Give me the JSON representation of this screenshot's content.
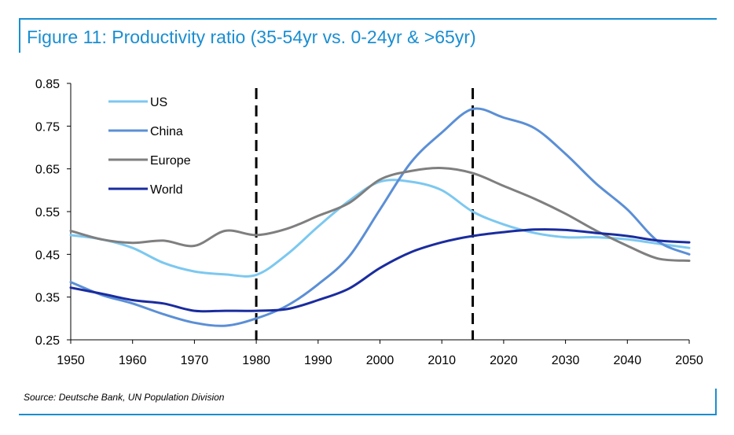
{
  "figure": {
    "title": "Figure 11: Productivity ratio (35-54yr vs. 0-24yr & >65yr)",
    "source": "Source: Deutsche Bank, UN Population Division",
    "accent_color": "#1a8ed1"
  },
  "chart_data": {
    "type": "line",
    "title": "",
    "xlabel": "",
    "ylabel": "",
    "xlim": [
      1950,
      2050
    ],
    "ylim": [
      0.25,
      0.85
    ],
    "x_ticks": [
      1950,
      1960,
      1970,
      1980,
      1990,
      2000,
      2010,
      2020,
      2030,
      2040,
      2050
    ],
    "x_tick_labels": [
      "1950",
      "1960",
      "1970",
      "1980",
      "1990",
      "2000",
      "2010",
      "2020",
      "2030",
      "2040",
      "2050"
    ],
    "y_ticks": [
      0.25,
      0.35,
      0.45,
      0.55,
      0.65,
      0.75,
      0.85
    ],
    "y_tick_labels": [
      "0.25",
      "0.35",
      "0.45",
      "0.55",
      "0.65",
      "0.75",
      "0.85"
    ],
    "grid": false,
    "legend_position": "top-left",
    "reference_lines": [
      1980,
      2015
    ],
    "series": [
      {
        "name": "US",
        "color": "#7cc8f0",
        "x": [
          1950,
          1955,
          1960,
          1965,
          1970,
          1975,
          1980,
          1985,
          1990,
          1995,
          2000,
          2005,
          2010,
          2015,
          2020,
          2025,
          2030,
          2035,
          2040,
          2045,
          2050
        ],
        "y": [
          0.495,
          0.485,
          0.465,
          0.43,
          0.41,
          0.403,
          0.402,
          0.45,
          0.515,
          0.575,
          0.62,
          0.62,
          0.6,
          0.55,
          0.52,
          0.5,
          0.49,
          0.49,
          0.485,
          0.475,
          0.465
        ]
      },
      {
        "name": "China",
        "color": "#5b8fd6",
        "x": [
          1950,
          1955,
          1960,
          1965,
          1970,
          1975,
          1980,
          1985,
          1990,
          1995,
          2000,
          2005,
          2010,
          2015,
          2020,
          2025,
          2030,
          2035,
          2040,
          2045,
          2050
        ],
        "y": [
          0.385,
          0.355,
          0.335,
          0.31,
          0.29,
          0.283,
          0.3,
          0.33,
          0.38,
          0.445,
          0.555,
          0.665,
          0.735,
          0.79,
          0.77,
          0.745,
          0.685,
          0.615,
          0.555,
          0.48,
          0.45
        ]
      },
      {
        "name": "Europe",
        "color": "#7f7f7f",
        "x": [
          1950,
          1955,
          1960,
          1965,
          1970,
          1975,
          1980,
          1985,
          1990,
          1995,
          2000,
          2005,
          2010,
          2015,
          2020,
          2025,
          2030,
          2035,
          2040,
          2045,
          2050
        ],
        "y": [
          0.505,
          0.485,
          0.477,
          0.482,
          0.47,
          0.505,
          0.495,
          0.51,
          0.54,
          0.57,
          0.625,
          0.645,
          0.652,
          0.64,
          0.61,
          0.58,
          0.545,
          0.505,
          0.47,
          0.44,
          0.435
        ]
      },
      {
        "name": "World",
        "color": "#1a2c9e",
        "x": [
          1950,
          1955,
          1960,
          1965,
          1970,
          1975,
          1980,
          1985,
          1990,
          1995,
          2000,
          2005,
          2010,
          2015,
          2020,
          2025,
          2030,
          2035,
          2040,
          2045,
          2050
        ],
        "y": [
          0.372,
          0.358,
          0.343,
          0.335,
          0.318,
          0.318,
          0.318,
          0.322,
          0.343,
          0.37,
          0.418,
          0.455,
          0.478,
          0.493,
          0.502,
          0.508,
          0.507,
          0.5,
          0.493,
          0.482,
          0.478
        ]
      }
    ]
  }
}
